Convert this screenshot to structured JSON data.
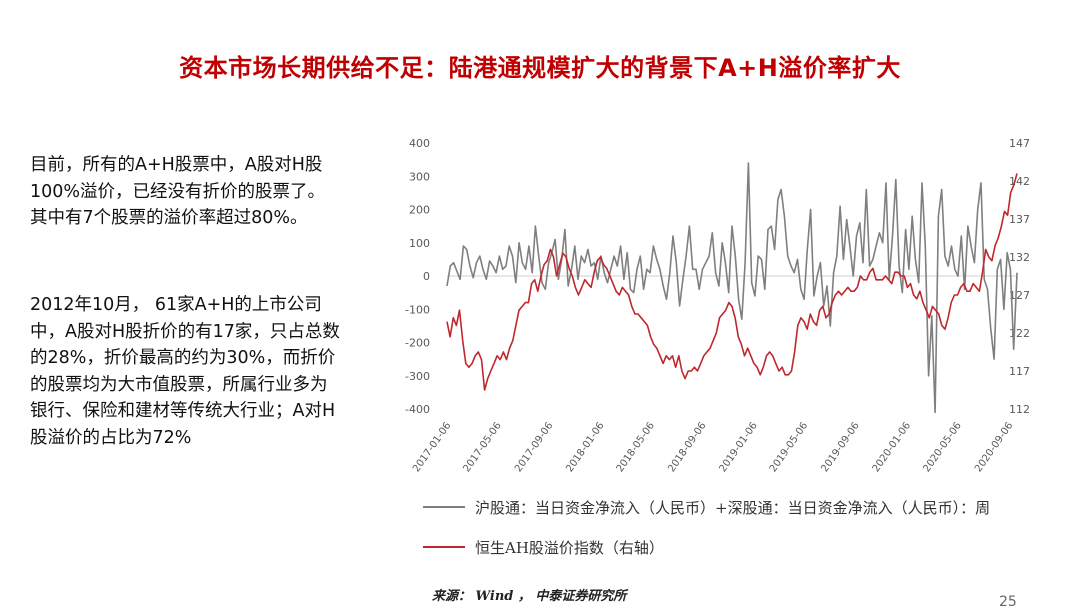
{
  "title": "资本市场长期供给不足：陆港通规模扩大的背景下A+H溢价率扩大",
  "paragraphs": [
    "目前，所有的A+H股票中，A股对H股100%溢价，已经没有折价的股票了。其中有7个股票的溢价率超过80%。",
    "2012年10月， 61家A+H的上市公司中，A股对H股折价的有17家，只占总数的28%，折价最高的约为30%，而折价的股票均为大市值股票，所属行业多为银行、保险和建材等传统大行业；A对H股溢价的占比为72%"
  ],
  "source": "来源： Wind ， 中泰证券研究所",
  "page_number": "25",
  "chart_data": {
    "type": "line",
    "title": "",
    "x_tick_labels": [
      "2017-01-06",
      "2017-05-06",
      "2017-09-06",
      "2018-01-06",
      "2018-05-06",
      "2018-09-06",
      "2019-01-06",
      "2019-05-06",
      "2019-09-06",
      "2020-01-06",
      "2020-05-06",
      "2020-09-06"
    ],
    "x_range": [
      "2017-01-06",
      "2020-09-25"
    ],
    "y_left": {
      "min": -400,
      "max": 400,
      "ticks": [
        "400",
        "300",
        "200",
        "100",
        "0",
        "-100",
        "-200",
        "-300",
        "-400"
      ]
    },
    "y_right": {
      "min": 112,
      "max": 147,
      "ticks": [
        "147",
        "142",
        "137",
        "132",
        "127",
        "122",
        "117",
        "112"
      ]
    },
    "grid": false,
    "legend_position": "bottom",
    "series": [
      {
        "name": "沪股通：当日资金净流入（人民币）+深股通：当日资金净流入（人民币）：周",
        "axis": "left",
        "color": "#7f7f7f",
        "values": [
          -30,
          30,
          40,
          15,
          -10,
          90,
          80,
          30,
          -5,
          40,
          60,
          20,
          -10,
          45,
          30,
          10,
          60,
          20,
          30,
          90,
          60,
          -20,
          100,
          40,
          20,
          90,
          10,
          150,
          60,
          -20,
          -40,
          40,
          70,
          110,
          -10,
          50,
          140,
          -30,
          20,
          90,
          -10,
          60,
          40,
          80,
          30,
          40,
          -10,
          60,
          10,
          -20,
          20,
          60,
          30,
          90,
          -10,
          70,
          -40,
          -50,
          20,
          60,
          -40,
          20,
          10,
          90,
          50,
          20,
          -30,
          -70,
          10,
          120,
          40,
          -90,
          -10,
          60,
          150,
          20,
          20,
          -40,
          20,
          40,
          60,
          130,
          10,
          -30,
          100,
          40,
          -50,
          150,
          60,
          -70,
          -130,
          40,
          340,
          -20,
          -60,
          60,
          50,
          -40,
          140,
          150,
          80,
          230,
          260,
          180,
          60,
          30,
          10,
          50,
          -40,
          -70,
          80,
          200,
          -60,
          0,
          40,
          -90,
          -30,
          -150,
          10,
          60,
          210,
          50,
          170,
          90,
          0,
          120,
          160,
          40,
          260,
          30,
          50,
          90,
          130,
          100,
          280,
          -10,
          120,
          290,
          30,
          -50,
          140,
          20,
          180,
          50,
          -20,
          280,
          90,
          -300,
          -120,
          -410,
          180,
          260,
          60,
          30,
          90,
          20,
          0,
          120,
          -40,
          150,
          90,
          40,
          200,
          280,
          -10,
          -40,
          -160,
          -250,
          20,
          50,
          -100,
          70,
          20,
          -220,
          10
        ]
      },
      {
        "name": "恒生AH股溢价指数（右轴）",
        "axis": "right",
        "color": "#c0272d",
        "values": [
          123.5,
          121.5,
          124,
          123,
          125,
          121,
          118,
          117.5,
          118,
          119,
          119.5,
          118.5,
          114.5,
          116,
          117,
          118,
          119,
          118.5,
          119.5,
          118.5,
          120,
          121,
          123,
          125,
          125.5,
          126,
          126,
          128.5,
          129,
          127.5,
          129.5,
          131,
          131.5,
          133,
          132,
          129.5,
          131,
          132.5,
          132,
          130.5,
          129.5,
          128,
          127,
          128,
          129,
          128.5,
          128,
          130,
          131.5,
          132,
          131,
          130.5,
          129.5,
          128.5,
          127.5,
          127,
          128,
          127.5,
          127,
          125.5,
          124.5,
          124.5,
          124,
          123.5,
          123,
          121.5,
          120.5,
          120,
          119,
          118,
          119,
          118.5,
          119,
          117.5,
          119,
          117,
          116,
          117,
          117,
          117.5,
          117,
          118,
          119,
          119.5,
          120,
          121,
          122,
          124,
          124.5,
          125,
          126,
          125.5,
          124,
          121.5,
          120.5,
          119,
          120,
          119,
          118,
          117.5,
          116.5,
          117.5,
          119,
          119.5,
          119,
          118,
          117,
          117.5,
          116.5,
          116.5,
          117,
          119.5,
          123,
          124,
          123.5,
          122.5,
          124.5,
          123.5,
          123,
          125,
          125.5,
          124,
          124.5,
          126,
          127,
          127.5,
          127,
          127.5,
          128,
          127.5,
          127.5,
          128,
          129.5,
          129,
          129,
          130,
          130.5,
          129,
          129,
          129,
          129.5,
          129,
          128.5,
          130,
          130,
          129.5,
          129.5,
          128,
          128.5,
          127,
          126.5,
          127.5,
          126,
          125,
          124,
          125.5,
          125,
          124.5,
          123,
          122.5,
          124,
          126,
          127,
          127,
          128,
          128.5,
          127.5,
          127.5,
          128.5,
          128,
          127.5,
          130,
          133,
          132,
          131.5,
          133.5,
          134.5,
          136,
          138,
          137.5,
          140.5,
          141.5,
          143
        ]
      }
    ]
  }
}
